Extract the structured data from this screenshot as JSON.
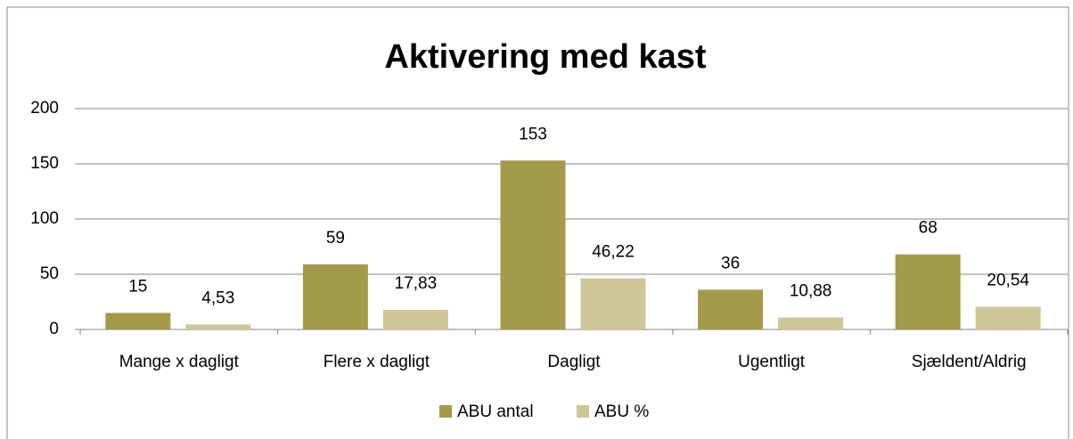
{
  "chart_data": {
    "type": "bar",
    "title": "Aktivering med kast",
    "categories": [
      "Mange x dagligt",
      "Flere x dagligt",
      "Dagligt",
      "Ugentligt",
      "Sjældent/Aldrig"
    ],
    "series": [
      {
        "name": "ABU antal",
        "color": "#a39b4a",
        "values": [
          15,
          59,
          153,
          36,
          68
        ]
      },
      {
        "name": "ABU %",
        "color": "#cdc699",
        "values": [
          4.53,
          17.83,
          46.22,
          10.88,
          20.54
        ],
        "value_labels": [
          "4,53",
          "17,83",
          "46,22",
          "10,88",
          "20,54"
        ]
      }
    ],
    "ylim": [
      0,
      200
    ],
    "yticks": [
      0,
      50,
      100,
      150,
      200
    ],
    "grid": true,
    "legend": "bottom"
  }
}
